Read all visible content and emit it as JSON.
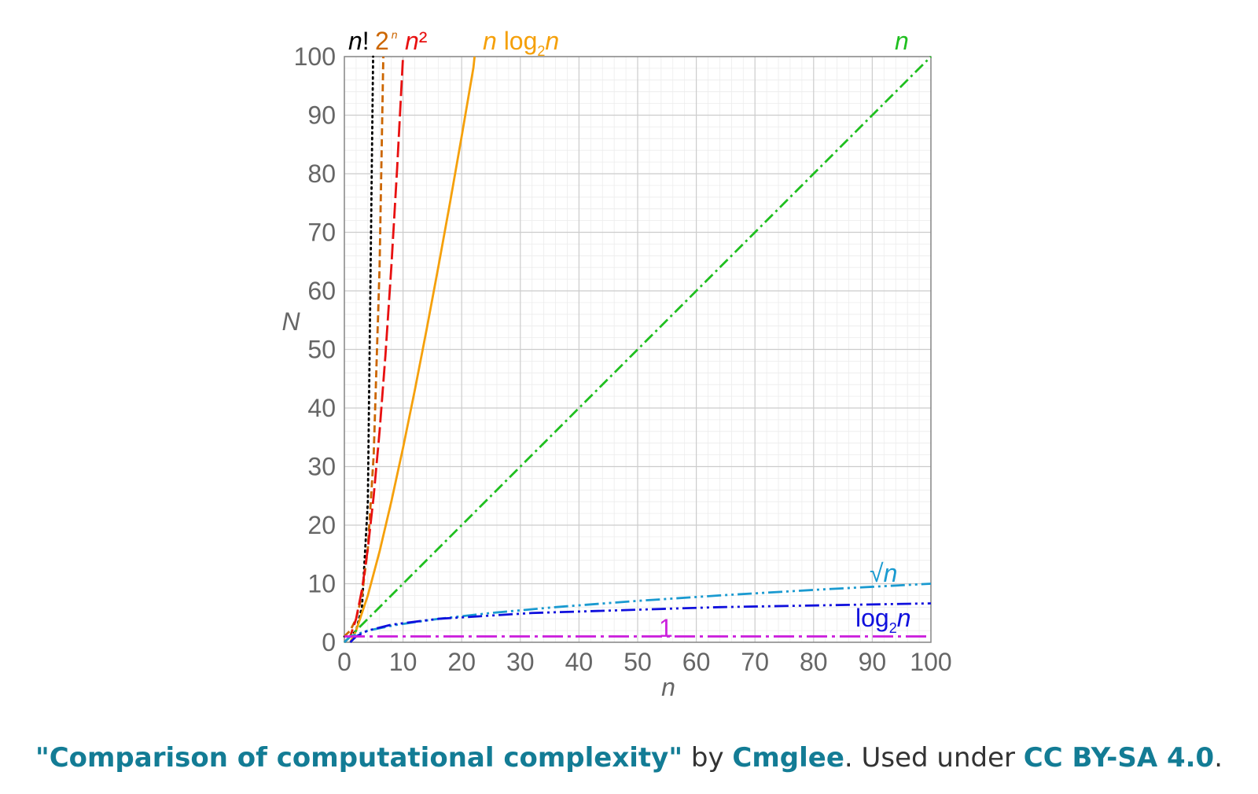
{
  "chart_data": {
    "type": "line",
    "xlabel": "n",
    "ylabel": "N",
    "xlim": [
      0,
      100
    ],
    "ylim": [
      0,
      100
    ],
    "x_ticks": [
      0,
      10,
      20,
      30,
      40,
      50,
      60,
      70,
      80,
      90,
      100
    ],
    "y_ticks": [
      0,
      10,
      20,
      30,
      40,
      50,
      60,
      70,
      80,
      90,
      100
    ],
    "grid": true,
    "series": [
      {
        "key": "factorial",
        "name": "n!",
        "color": "#000000",
        "dash": "dotted",
        "points": [
          [
            0,
            1
          ],
          [
            1,
            1
          ],
          [
            2,
            2
          ],
          [
            3,
            6
          ],
          [
            4,
            24
          ],
          [
            4.9,
            100
          ]
        ]
      },
      {
        "key": "exponential",
        "name": "2^n",
        "color": "#cc6600",
        "dash": "dashed",
        "points": [
          [
            0,
            1
          ],
          [
            1,
            2
          ],
          [
            2,
            4
          ],
          [
            3,
            8
          ],
          [
            4,
            16
          ],
          [
            5,
            32
          ],
          [
            6,
            64
          ],
          [
            6.64,
            100
          ]
        ]
      },
      {
        "key": "quadratic",
        "name": "n²",
        "color": "#e81010",
        "dash": "long-dash",
        "points": [
          [
            0,
            0
          ],
          [
            1,
            1
          ],
          [
            2,
            4
          ],
          [
            3,
            9
          ],
          [
            4,
            16
          ],
          [
            5,
            25
          ],
          [
            6,
            36
          ],
          [
            7,
            49
          ],
          [
            8,
            64
          ],
          [
            9,
            81
          ],
          [
            10,
            100
          ]
        ]
      },
      {
        "key": "nlogn",
        "name": "n log2n",
        "color": "#f5a00a",
        "dash": "solid",
        "points": [
          [
            1,
            0
          ],
          [
            2,
            2
          ],
          [
            4,
            8
          ],
          [
            6,
            15.5
          ],
          [
            8,
            24
          ],
          [
            10,
            33.2
          ],
          [
            12,
            43
          ],
          [
            14,
            53.3
          ],
          [
            16,
            64
          ],
          [
            18,
            75
          ],
          [
            20,
            86.4
          ],
          [
            22,
            98.1
          ],
          [
            22.2,
            100
          ]
        ]
      },
      {
        "key": "linear",
        "name": "n",
        "color": "#1fbf1f",
        "dash": "dash-dot",
        "points": [
          [
            0,
            0
          ],
          [
            100,
            100
          ]
        ]
      },
      {
        "key": "sqrt",
        "name": "√n",
        "color": "#1a9ad0",
        "dash": "dash-dot-dot",
        "points": [
          [
            0,
            0
          ],
          [
            1,
            1
          ],
          [
            4,
            2
          ],
          [
            9,
            3
          ],
          [
            16,
            4
          ],
          [
            25,
            5
          ],
          [
            36,
            6
          ],
          [
            49,
            7
          ],
          [
            64,
            8
          ],
          [
            81,
            9
          ],
          [
            100,
            10
          ]
        ]
      },
      {
        "key": "log",
        "name": "log2n",
        "color": "#1010dd",
        "dash": "dash-dot-dot",
        "points": [
          [
            1,
            0
          ],
          [
            2,
            1
          ],
          [
            4,
            2
          ],
          [
            8,
            3
          ],
          [
            16,
            4
          ],
          [
            32,
            5
          ],
          [
            64,
            6
          ],
          [
            100,
            6.64
          ]
        ]
      },
      {
        "key": "constant",
        "name": "1",
        "color": "#cc22dd",
        "dash": "long-dash-dot",
        "points": [
          [
            0,
            1
          ],
          [
            100,
            1
          ]
        ]
      }
    ],
    "series_labels": {
      "factorial": {
        "base": "n",
        "suffix": "!"
      },
      "exponential": {
        "base": "2",
        "sup": "n"
      },
      "quadratic": {
        "base": "n",
        "suffix": "²"
      },
      "nlogn": {
        "base": "n",
        "mid": " log",
        "sub": "2",
        "end": "n"
      },
      "linear": {
        "base": "n"
      },
      "sqrt": {
        "base": "√",
        "end": "n"
      },
      "log": {
        "base": "log",
        "sub": "2",
        "end": "n"
      },
      "constant": {
        "base": "1"
      }
    }
  },
  "caption": {
    "open_quote": "\"",
    "title": "Comparison of computational complexity",
    "close_quote": "\"",
    "by": " by ",
    "author": "Cmglee",
    "used_under": ". Used under ",
    "license": "CC BY-SA 4.0",
    "end": "."
  }
}
